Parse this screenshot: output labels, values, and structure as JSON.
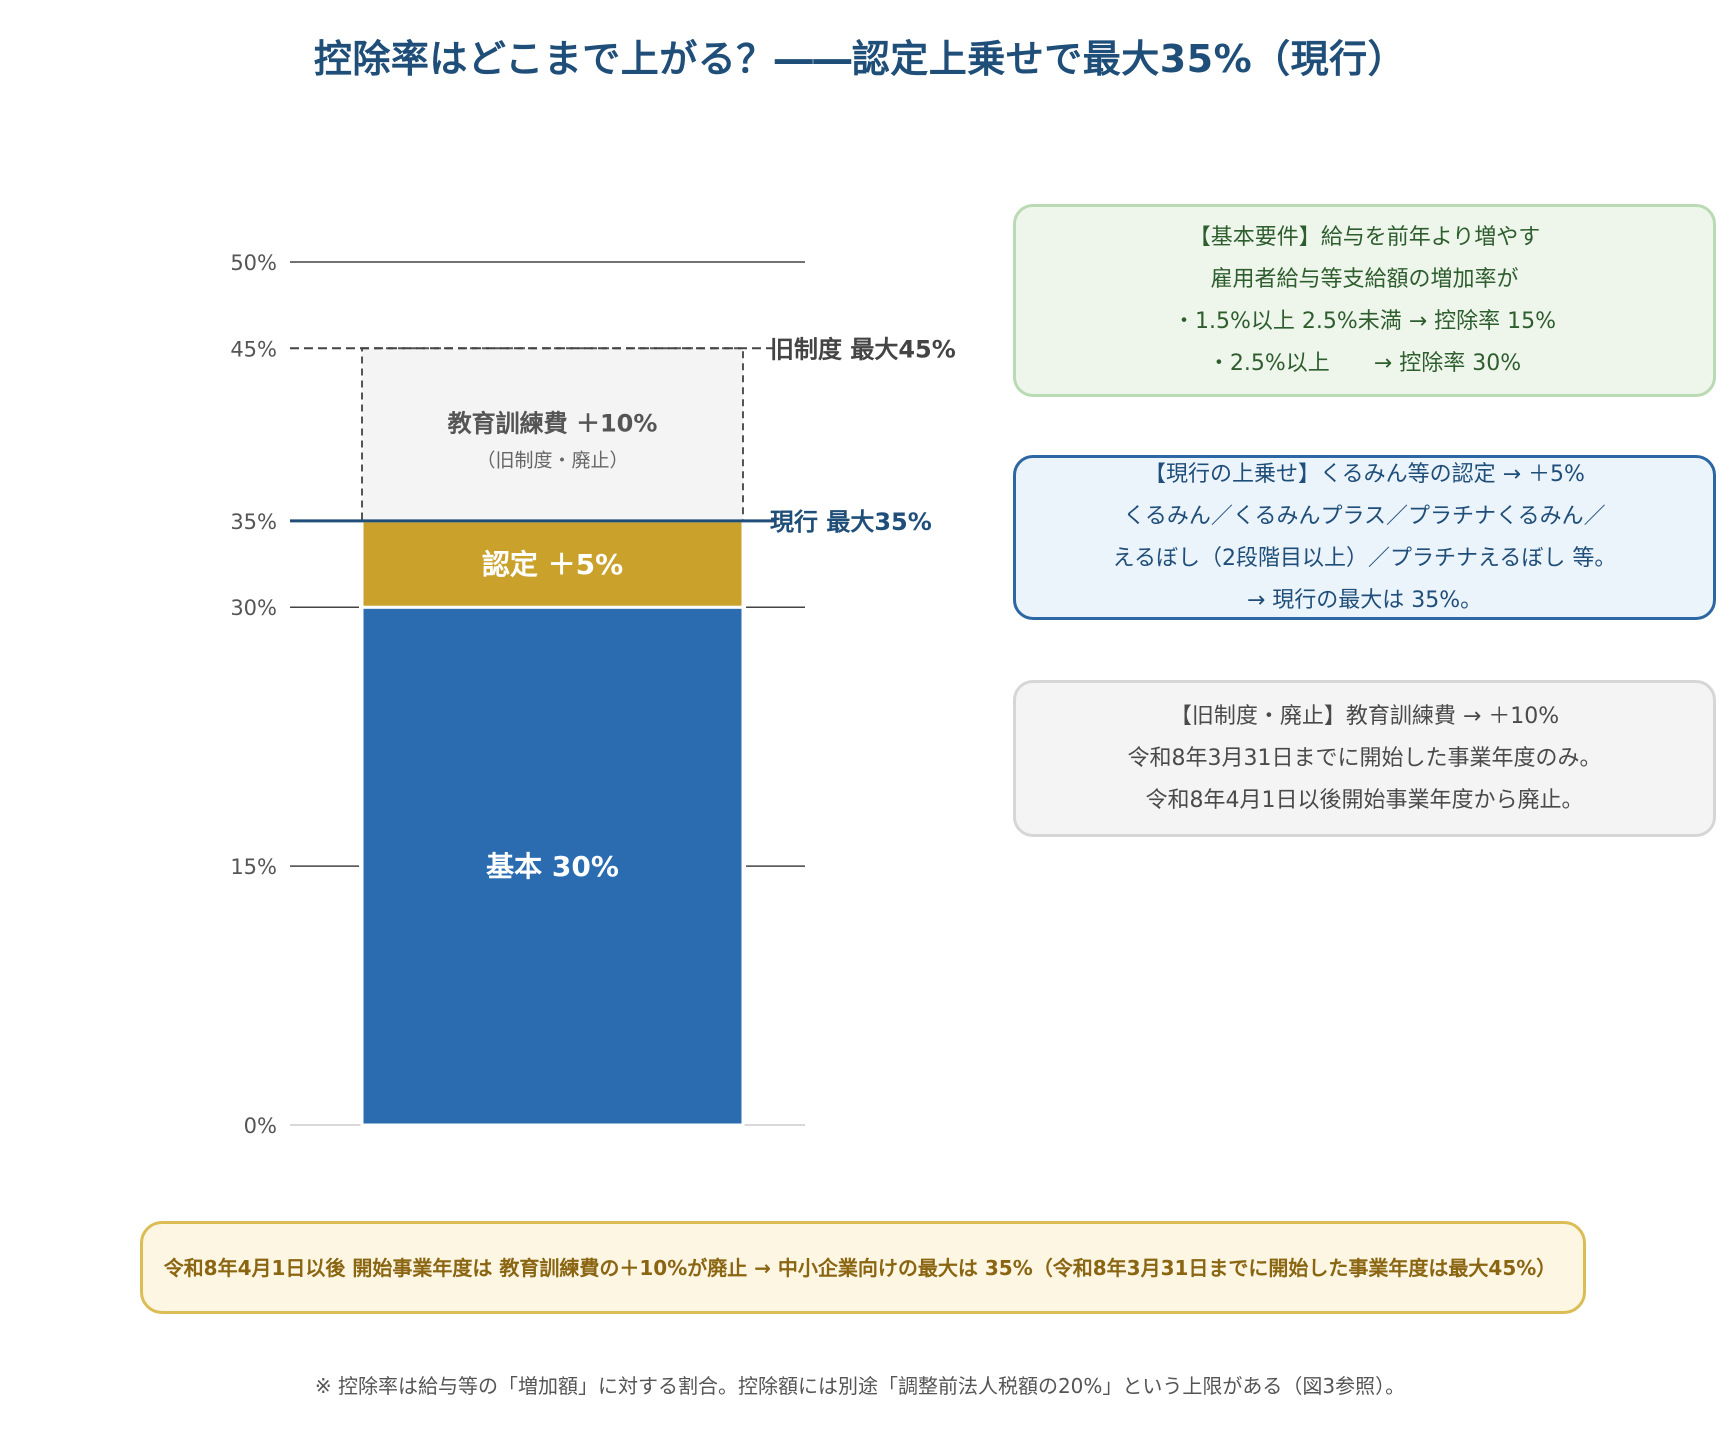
{
  "title": "控除率はどこまで上がる？――認定上乗せで最大35%（現行）",
  "colors": {
    "base": "#2b6cb0",
    "certified": "#c9a12b",
    "old": "#f4f4f4",
    "current_line": "#1f4e79",
    "title": "#1f4e79"
  },
  "chart_data": {
    "type": "bar",
    "stacked": true,
    "ylim": [
      0,
      50
    ],
    "yticks": [
      "0%",
      "15%",
      "30%",
      "35%",
      "45%",
      "50%"
    ],
    "segments": [
      {
        "name": "基本 30%",
        "from": 0,
        "to": 30,
        "color": "#2b6cb0"
      },
      {
        "name": "認定 ＋5%",
        "from": 30,
        "to": 35,
        "color": "#c9a12b"
      },
      {
        "name": "教育訓練費 ＋10%",
        "sub": "（旧制度・廃止）",
        "from": 35,
        "to": 45,
        "color": "#f4f4f4",
        "dashed": true
      }
    ],
    "reference_lines": [
      {
        "value": 45,
        "label": "旧制度 最大45%",
        "style": "dashed"
      },
      {
        "value": 35,
        "label": "現行 最大35%",
        "style": "solid"
      }
    ]
  },
  "notes": {
    "basic": {
      "lines": [
        "【基本要件】給与を前年より増やす",
        "雇用者給与等支給額の増加率が",
        "・1.5%以上 2.5%未満 → 控除率 15%",
        "・2.5%以上　　→ 控除率 30%"
      ]
    },
    "current": {
      "lines": [
        "【現行の上乗せ】くるみん等の認定 → ＋5%",
        "くるみん／くるみんプラス／プラチナくるみん／",
        "えるぼし（2段階目以上）／プラチナえるぼし 等。",
        "→ 現行の最大は 35%。"
      ]
    },
    "old": {
      "lines": [
        "【旧制度・廃止】教育訓練費 → ＋10%",
        "令和8年3月31日までに開始した事業年度のみ。",
        "令和8年4月1日以後開始事業年度から廃止。"
      ]
    }
  },
  "banner": "令和8年4月1日以後 開始事業年度は 教育訓練費の＋10%が廃止 → 中小企業向けの最大は 35%（令和8年3月31日までに開始した事業年度は最大45%）",
  "footnote": "※ 控除率は給与等の「増加額」に対する割合。控除額には別途「調整前法人税額の20%」という上限がある（図3参照）。"
}
